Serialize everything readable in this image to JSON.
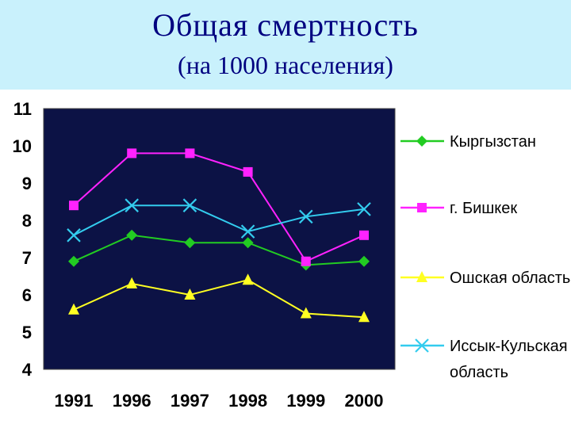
{
  "slide": {
    "title": "Общая смертность",
    "subtitle": "(на 1000 населения)"
  },
  "chart_data": {
    "type": "line",
    "title": "",
    "xlabel": "",
    "ylabel": "",
    "categories": [
      "1991",
      "1996",
      "1997",
      "1998",
      "1999",
      "2000"
    ],
    "ylim": [
      4,
      11
    ],
    "yticks": [
      "4",
      "5",
      "6",
      "7",
      "8",
      "9",
      "10",
      "11"
    ],
    "grid": false,
    "legend_position": "right",
    "plot_background": "#0c1245",
    "series": [
      {
        "name": "Кыргызстан",
        "color": "#22cc22",
        "marker": "diamond",
        "values": [
          6.9,
          7.6,
          7.4,
          7.4,
          6.8,
          6.9
        ]
      },
      {
        "name": "г. Бишкек",
        "color": "#ff22ff",
        "marker": "square",
        "values": [
          8.4,
          9.8,
          9.8,
          9.3,
          6.9,
          7.6
        ]
      },
      {
        "name": "Ошская область",
        "color": "#ffff22",
        "marker": "triangle",
        "values": [
          5.6,
          6.3,
          6.0,
          6.4,
          5.5,
          5.4
        ]
      },
      {
        "name": "Иссык-Кульская область",
        "color": "#33ccee",
        "marker": "x",
        "values": [
          7.6,
          8.4,
          8.4,
          7.7,
          8.1,
          8.3
        ]
      }
    ]
  }
}
